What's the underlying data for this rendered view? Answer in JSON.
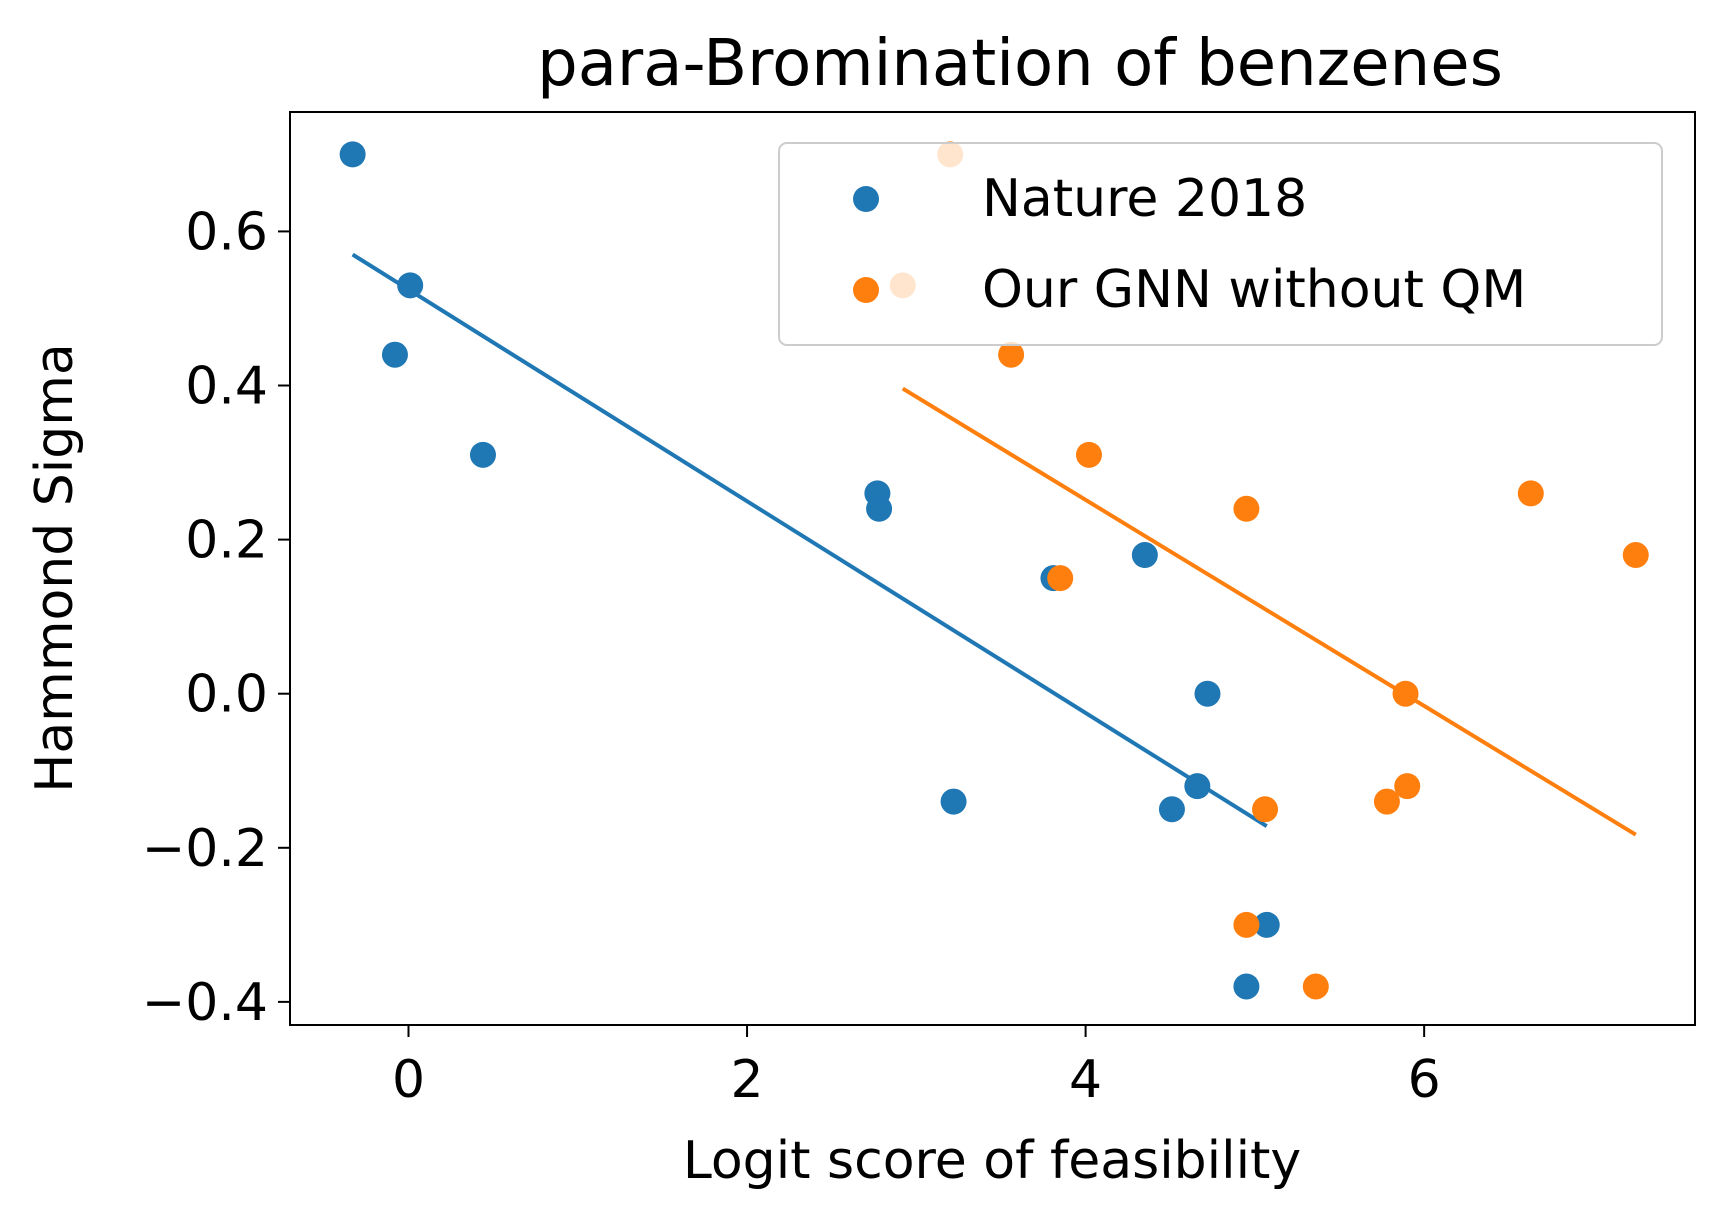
{
  "chart_data": {
    "type": "scatter",
    "title": "para-Bromination of benzenes",
    "xlabel": "Logit score of feasibility",
    "ylabel": "Hammond Sigma",
    "xlim": [
      -0.7,
      7.6
    ],
    "ylim": [
      -0.43,
      0.755
    ],
    "xticks": [
      0,
      2,
      4,
      6
    ],
    "xtick_labels": [
      "0",
      "2",
      "4",
      "6"
    ],
    "yticks": [
      -0.4,
      -0.2,
      0.0,
      0.2,
      0.4,
      0.6
    ],
    "ytick_labels": [
      "−0.4",
      "−0.2",
      "0.0",
      "0.2",
      "0.4",
      "0.6"
    ],
    "grid": false,
    "legend_position": "top-right",
    "series": [
      {
        "name": "Nature 2018",
        "color": "#1f77b4",
        "x": [
          -0.33,
          0.01,
          -0.08,
          0.44,
          2.77,
          2.78,
          3.22,
          3.81,
          4.35,
          4.72,
          4.66,
          4.51,
          5.07,
          4.95
        ],
        "y": [
          0.7,
          0.53,
          0.44,
          0.31,
          0.26,
          0.24,
          -0.14,
          0.15,
          0.18,
          0.0,
          -0.12,
          -0.15,
          -0.3,
          -0.38
        ],
        "fit": {
          "x": [
            -0.33,
            5.07
          ],
          "y": [
            0.57,
            -0.172
          ]
        }
      },
      {
        "name": "Our GNN without QM",
        "color": "#ff7f0e",
        "x": [
          3.2,
          2.92,
          3.56,
          4.02,
          4.95,
          3.85,
          5.89,
          5.9,
          5.78,
          5.06,
          4.95,
          5.36,
          6.63,
          7.25
        ],
        "y": [
          0.7,
          0.53,
          0.44,
          0.31,
          0.24,
          0.15,
          0.0,
          -0.12,
          -0.14,
          -0.15,
          -0.3,
          -0.38,
          0.26,
          0.18
        ],
        "fit": {
          "x": [
            2.92,
            7.25
          ],
          "y": [
            0.396,
            -0.183
          ]
        }
      }
    ]
  }
}
